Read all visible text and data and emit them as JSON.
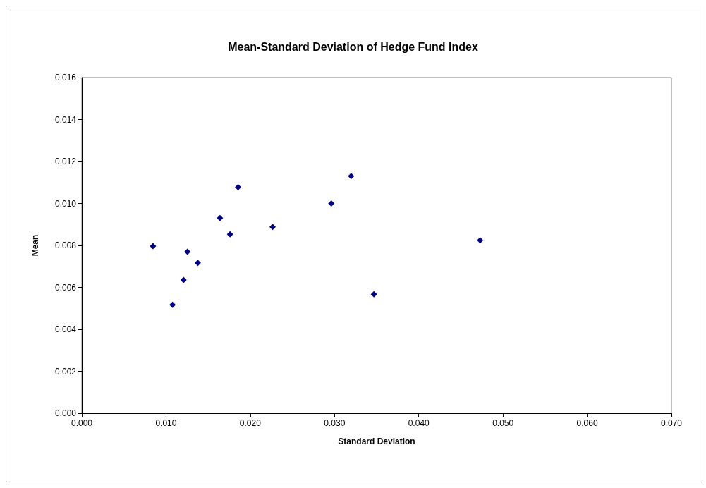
{
  "chart_data": {
    "type": "scatter",
    "title": "Mean-Standard Deviation of Hedge Fund Index",
    "xlabel": "Standard Deviation",
    "ylabel": "Mean",
    "x": [
      0.00845,
      0.01077,
      0.01208,
      0.01254,
      0.01377,
      0.0164,
      0.0176,
      0.01855,
      0.02265,
      0.02962,
      0.03197,
      0.03468,
      0.04729
    ],
    "series": [
      {
        "color": "#000080",
        "values": [
          0.00797,
          0.00517,
          0.00635,
          0.0077,
          0.00717,
          0.0093,
          0.00853,
          0.01077,
          0.00888,
          0.01,
          0.0113,
          0.00567,
          0.00824
        ]
      }
    ],
    "marker": "diamond",
    "xlim": [
      0,
      0.07
    ],
    "xticks": [
      {
        "value": 0,
        "label": "0.000"
      },
      {
        "value": 0.01,
        "label": "0.010"
      },
      {
        "value": 0.02,
        "label": "0.020"
      },
      {
        "value": 0.03,
        "label": "0.030"
      },
      {
        "value": 0.04,
        "label": "0.040"
      },
      {
        "value": 0.05,
        "label": "0.050"
      },
      {
        "value": 0.06,
        "label": "0.060"
      },
      {
        "value": 0.07,
        "label": "0.070"
      }
    ],
    "ylim": [
      0,
      0.016
    ],
    "yticks": [
      {
        "value": 0,
        "label": "0.000"
      },
      {
        "value": 0.002,
        "label": "0.002"
      },
      {
        "value": 0.004,
        "label": "0.004"
      },
      {
        "value": 0.006,
        "label": "0.006"
      },
      {
        "value": 0.008,
        "label": "0.008"
      },
      {
        "value": 0.01,
        "label": "0.010"
      },
      {
        "value": 0.012,
        "label": "0.012"
      },
      {
        "value": 0.014,
        "label": "0.014"
      },
      {
        "value": 0.016,
        "label": "0.016"
      }
    ],
    "grid": false
  }
}
